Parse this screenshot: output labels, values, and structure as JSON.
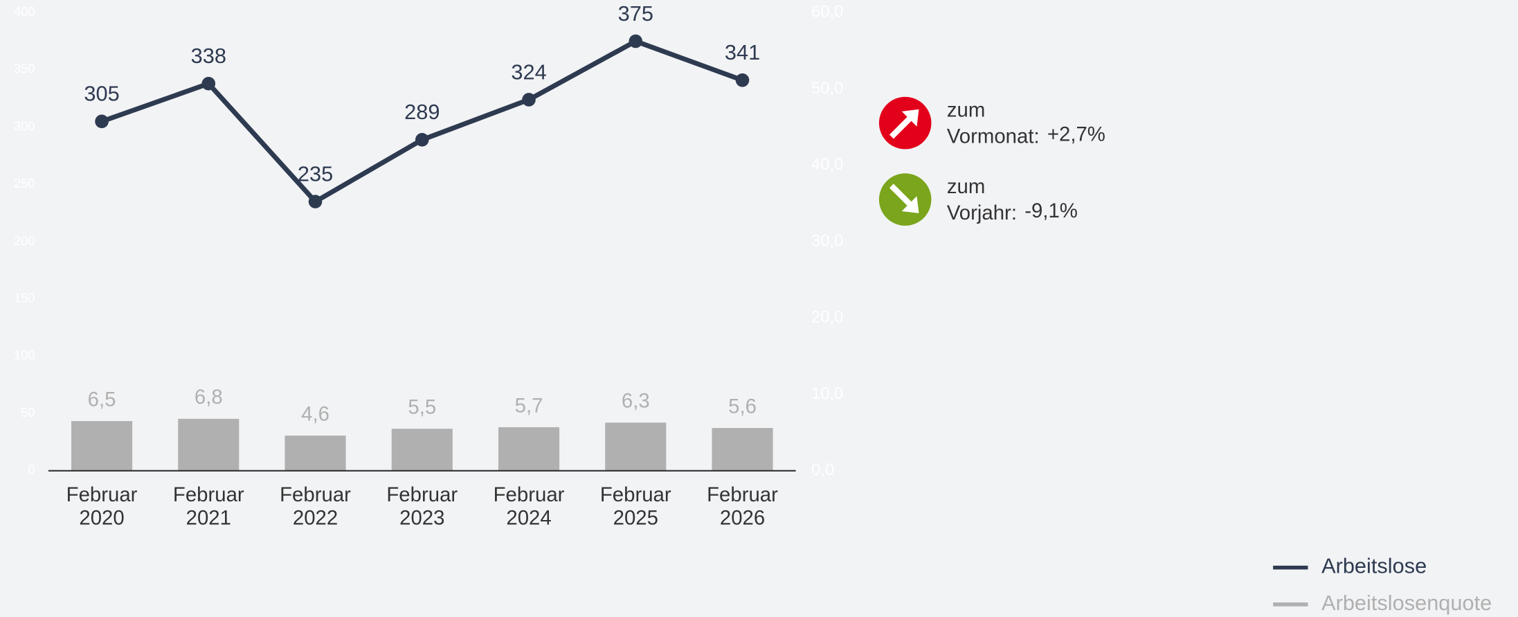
{
  "chart_data": {
    "type": "bar-line",
    "categories": [
      "Februar 2020",
      "Februar 2021",
      "Februar 2022",
      "Februar 2023",
      "Februar 2024",
      "Februar 2025",
      "Februar 2026"
    ],
    "series": [
      {
        "name": "Arbeitslose",
        "type": "line",
        "color": "#2e3a50",
        "values": [
          305,
          338,
          235,
          289,
          324,
          375,
          341
        ]
      },
      {
        "name": "Arbeitslosenquote",
        "type": "bar",
        "axis": "y2",
        "color": "#b0b0b0",
        "values": [
          6.5,
          6.8,
          4.6,
          5.5,
          5.7,
          6.3,
          5.6
        ],
        "value_labels": [
          "6,5",
          "6,8",
          "4,6",
          "5,5",
          "5,7",
          "6,3",
          "5,6"
        ]
      }
    ],
    "ylim": [
      0,
      400
    ],
    "yticks": [
      0,
      50,
      100,
      150,
      200,
      250,
      300,
      350,
      400
    ],
    "y2lim": [
      0,
      60
    ],
    "y2ticks": [
      {
        "value": 0,
        "label": "0,0"
      },
      {
        "value": 10,
        "label": "10,0"
      },
      {
        "value": 20,
        "label": "20,0"
      },
      {
        "value": 30,
        "label": "30,0"
      },
      {
        "value": 40,
        "label": "40,0"
      },
      {
        "value": 50,
        "label": "50,0"
      },
      {
        "value": 60,
        "label": "60,0"
      }
    ],
    "legend": "bottom-right"
  },
  "indicators": [
    {
      "label": [
        "zum",
        "Vormonat:"
      ],
      "value": "+2,7%",
      "direction": "up",
      "color": "#e2001a"
    },
    {
      "label": [
        "zum",
        "Vorjahr:"
      ],
      "value": "-9,1%",
      "direction": "down",
      "color": "#7aa51c"
    }
  ]
}
